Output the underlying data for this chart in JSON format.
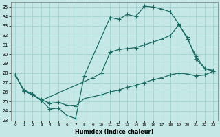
{
  "xlabel": "Humidex (Indice chaleur)",
  "xlim": [
    -0.5,
    23.5
  ],
  "ylim": [
    23,
    35.5
  ],
  "yticks": [
    23,
    24,
    25,
    26,
    27,
    28,
    29,
    30,
    31,
    32,
    33,
    34,
    35
  ],
  "xticks": [
    0,
    1,
    2,
    3,
    4,
    5,
    6,
    7,
    8,
    9,
    10,
    11,
    12,
    13,
    14,
    15,
    16,
    17,
    18,
    19,
    20,
    21,
    22,
    23
  ],
  "bg_color": "#c5e8e6",
  "grid_color": "#9ecfcc",
  "line_color": "#1a6b64",
  "line_width": 0.9,
  "marker": "+",
  "marker_size": 4,
  "marker_lw": 0.8,
  "curve1_x": [
    0,
    1,
    2,
    3,
    4,
    5,
    6,
    7,
    8,
    11,
    12,
    13,
    14,
    15,
    16,
    17,
    18,
    19,
    20,
    21,
    22,
    23
  ],
  "curve1_y": [
    27.8,
    26.2,
    25.8,
    25.1,
    24.2,
    24.3,
    23.5,
    23.2,
    27.7,
    33.9,
    33.7,
    34.2,
    34.0,
    35.1,
    35.0,
    34.8,
    34.5,
    33.2,
    31.6,
    29.8,
    28.5,
    28.3
  ],
  "curve2_x": [
    0,
    1,
    2,
    3,
    9,
    10,
    11,
    12,
    13,
    14,
    15,
    16,
    17,
    18,
    19,
    20,
    21,
    22,
    23
  ],
  "curve2_y": [
    27.8,
    26.1,
    25.7,
    25.1,
    27.5,
    28.0,
    30.2,
    30.5,
    30.6,
    30.7,
    31.0,
    31.3,
    31.6,
    32.0,
    33.1,
    31.8,
    29.5,
    28.5,
    28.2
  ],
  "curve3_x": [
    0,
    1,
    2,
    3,
    4,
    5,
    6,
    7,
    8,
    9,
    10,
    11,
    12,
    13,
    14,
    15,
    16,
    17,
    18,
    19,
    20,
    21,
    22,
    23
  ],
  "curve3_y": [
    27.8,
    26.1,
    25.7,
    25.2,
    24.8,
    24.9,
    24.6,
    24.5,
    25.3,
    25.5,
    25.7,
    26.0,
    26.2,
    26.5,
    26.7,
    27.0,
    27.3,
    27.5,
    27.8,
    28.0,
    27.9,
    27.7,
    27.8,
    28.2
  ]
}
